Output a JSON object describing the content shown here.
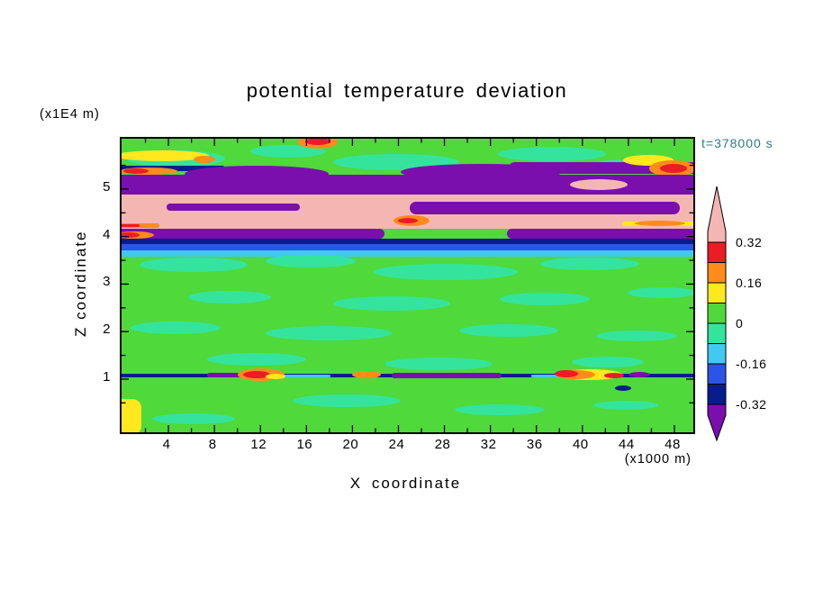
{
  "title": "potential temperature deviation",
  "time_label": "t=378000 s",
  "y_axis": {
    "label": "Z coordinate",
    "unit": "(x1E4 m)",
    "ticks": [
      1,
      2,
      3,
      4,
      5
    ]
  },
  "x_axis": {
    "label": "X coordinate",
    "unit": "(x1000 m)",
    "ticks": [
      4,
      8,
      12,
      16,
      20,
      24,
      28,
      32,
      36,
      40,
      44,
      48
    ]
  },
  "colorbar": {
    "boundary_labels": [
      "0.32",
      "0.16",
      "0",
      "-0.16",
      "-0.32"
    ],
    "arrow_top_color": "#f4b6b2",
    "arrow_bottom_color": "#7a0fae",
    "segment_colors": [
      "#ec1c24",
      "#ff8b1a",
      "#ffe81e",
      "#4fd93a",
      "#35e49c",
      "#41c9f2",
      "#2b55e6",
      "#071d8e"
    ]
  },
  "chart_data": {
    "type": "heatmap",
    "title": "potential temperature deviation",
    "xlabel": "X coordinate (x1000 m)",
    "ylabel": "Z coordinate (x1E4 m)",
    "time": "t=378000 s",
    "x_range": [
      0,
      50
    ],
    "z_range": [
      0,
      6.1
    ],
    "x_ticks": [
      4,
      8,
      12,
      16,
      20,
      24,
      28,
      32,
      36,
      40,
      44,
      48
    ],
    "z_ticks": [
      1,
      2,
      3,
      4,
      5
    ],
    "contour_interval": 0.08,
    "levels": [
      -0.32,
      -0.24,
      -0.16,
      -0.08,
      0,
      0.08,
      0.16,
      0.24,
      0.32
    ],
    "value_colors": {
      "gt_0.32": "pink",
      "0.24_0.32": "red",
      "0.16_0.24": "orange",
      "0.08_0.16": "yellow",
      "0_0.08": "green",
      "-0.08_0": "teal",
      "-0.16_-0.08": "cyan",
      "-0.24_-0.16": "blue",
      "-0.32_-0.24": "navy",
      "lt_-0.32": "purple"
    },
    "palette": {
      "green": "#4fd93a",
      "teal": "#35e49c",
      "cyan": "#41c9f2",
      "blue": "#2b55e6",
      "navy": "#071d8e",
      "purple": "#7a0fae",
      "pink": "#f4b6b2",
      "red": "#ec1c24",
      "orange": "#ff8b1a",
      "yellow": "#ffe81e"
    },
    "field_summary": "Near-zero (green/teal) field through most of the domain; strong layered wave structure between z=4 and z=5.5 with alternating pink (>0.32) and purple (<-0.32) bands over a cyan/blue/navy negative layer at z=4; thin mixed-sign disturbance line at z=0.9 with local red/orange maxima; yellow patch at lower-left corner.",
    "features": [
      [
        "e",
        "teal",
        60,
        22,
        55,
        9
      ],
      [
        "e",
        "teal",
        185,
        14,
        42,
        7
      ],
      [
        "e",
        "teal",
        305,
        26,
        70,
        9
      ],
      [
        "e",
        "teal",
        478,
        17,
        60,
        8
      ],
      [
        "e",
        "teal",
        565,
        30,
        45,
        7
      ],
      [
        "e",
        "yellow",
        45,
        19,
        52,
        6
      ],
      [
        "e",
        "orange",
        92,
        23,
        12,
        4
      ],
      [
        "e",
        "orange",
        218,
        4,
        22,
        7
      ],
      [
        "e",
        "red",
        218,
        3,
        14,
        4
      ],
      [
        "r",
        "navy",
        -30,
        30,
        145,
        6
      ],
      [
        "e",
        "orange",
        30,
        36,
        32,
        4
      ],
      [
        "e",
        "red",
        16,
        36,
        14,
        3
      ],
      [
        "r",
        "purple",
        430,
        26,
        235,
        13
      ],
      [
        "e",
        "yellow",
        585,
        24,
        28,
        6
      ],
      [
        "e",
        "orange",
        612,
        33,
        26,
        9
      ],
      [
        "e",
        "red",
        613,
        33,
        15,
        5
      ],
      [
        "r",
        "purple",
        -30,
        40,
        695,
        23
      ],
      [
        "e",
        "purple",
        150,
        39,
        80,
        9
      ],
      [
        "e",
        "purple",
        400,
        37,
        90,
        9
      ],
      [
        "e",
        "pink",
        530,
        51,
        32,
        6
      ],
      [
        "r",
        "pink",
        -30,
        62,
        695,
        38
      ],
      [
        "r",
        "purple",
        320,
        70,
        300,
        14
      ],
      [
        "r",
        "purple",
        50,
        72,
        148,
        8
      ],
      [
        "e",
        "orange",
        322,
        91,
        20,
        6
      ],
      [
        "e",
        "red",
        318,
        91,
        11,
        3
      ],
      [
        "r",
        "orange",
        -30,
        94,
        72,
        5
      ],
      [
        "r",
        "red",
        -30,
        95,
        50,
        3
      ],
      [
        "r",
        "yellow",
        556,
        92,
        110,
        5
      ],
      [
        "e",
        "orange",
        598,
        94,
        28,
        3
      ],
      [
        "r",
        "purple",
        -30,
        100,
        322,
        11
      ],
      [
        "r",
        "purple",
        428,
        100,
        237,
        11
      ],
      [
        "r",
        "navy",
        -30,
        111,
        695,
        6
      ],
      [
        "r",
        "blue",
        -30,
        117,
        695,
        7
      ],
      [
        "r",
        "cyan",
        -30,
        124,
        695,
        7
      ],
      [
        "e",
        "orange",
        14,
        107,
        22,
        4
      ],
      [
        "e",
        "red",
        8,
        107,
        12,
        3
      ],
      [
        "e",
        "teal",
        80,
        140,
        60,
        8
      ],
      [
        "e",
        "teal",
        210,
        136,
        50,
        7
      ],
      [
        "e",
        "teal",
        360,
        148,
        80,
        9
      ],
      [
        "e",
        "teal",
        520,
        139,
        55,
        7
      ],
      [
        "e",
        "teal",
        120,
        176,
        46,
        7
      ],
      [
        "e",
        "teal",
        300,
        183,
        65,
        8
      ],
      [
        "e",
        "teal",
        470,
        178,
        50,
        7
      ],
      [
        "e",
        "teal",
        600,
        171,
        38,
        6
      ],
      [
        "e",
        "teal",
        60,
        210,
        50,
        7
      ],
      [
        "e",
        "teal",
        230,
        216,
        70,
        8
      ],
      [
        "e",
        "teal",
        430,
        213,
        55,
        7
      ],
      [
        "e",
        "teal",
        572,
        219,
        45,
        6
      ],
      [
        "e",
        "teal",
        150,
        245,
        55,
        7
      ],
      [
        "e",
        "teal",
        352,
        250,
        60,
        7
      ],
      [
        "e",
        "teal",
        540,
        248,
        40,
        6
      ],
      [
        "r",
        "navy",
        -30,
        261,
        695,
        4
      ],
      [
        "r",
        "purple",
        300,
        260,
        122,
        6
      ],
      [
        "r",
        "purple",
        95,
        260,
        62,
        5
      ],
      [
        "r",
        "cyan",
        180,
        262,
        52,
        3
      ],
      [
        "r",
        "cyan",
        455,
        262,
        42,
        3
      ],
      [
        "e",
        "orange",
        155,
        262,
        26,
        7
      ],
      [
        "e",
        "red",
        150,
        262,
        15,
        4
      ],
      [
        "e",
        "yellow",
        171,
        264,
        11,
        3
      ],
      [
        "e",
        "orange",
        272,
        262,
        16,
        4
      ],
      [
        "e",
        "yellow",
        520,
        262,
        36,
        6
      ],
      [
        "e",
        "orange",
        504,
        262,
        22,
        5
      ],
      [
        "e",
        "red",
        494,
        261,
        13,
        4
      ],
      [
        "e",
        "red",
        547,
        263,
        11,
        3
      ],
      [
        "e",
        "purple",
        575,
        262,
        12,
        3
      ],
      [
        "e",
        "navy",
        557,
        277,
        9,
        3
      ],
      [
        "e",
        "teal",
        250,
        291,
        60,
        7
      ],
      [
        "e",
        "teal",
        420,
        301,
        50,
        6
      ],
      [
        "e",
        "teal",
        80,
        311,
        46,
        6
      ],
      [
        "e",
        "teal",
        560,
        296,
        36,
        5
      ],
      [
        "r",
        "yellow",
        -30,
        289,
        52,
        40
      ]
    ]
  }
}
